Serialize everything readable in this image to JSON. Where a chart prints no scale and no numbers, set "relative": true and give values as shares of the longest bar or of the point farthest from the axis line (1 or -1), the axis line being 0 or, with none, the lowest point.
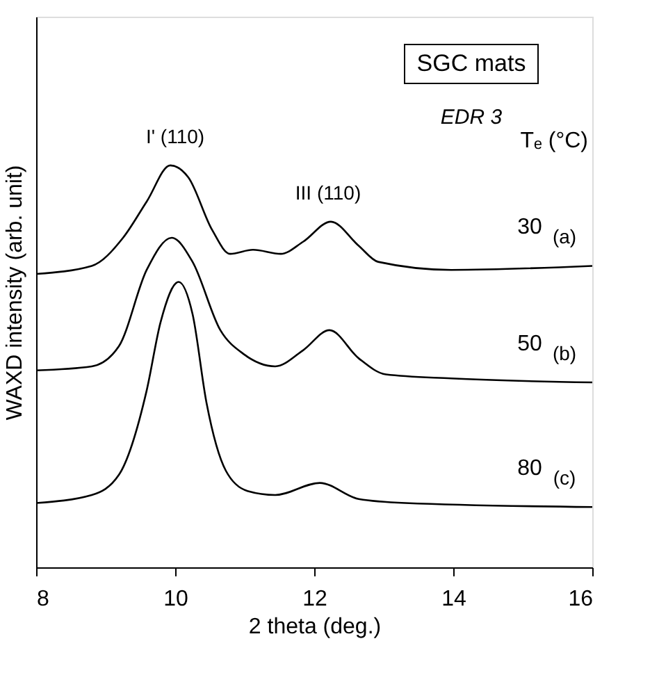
{
  "chart_data": {
    "type": "line",
    "relative": true,
    "xlabel": "2 theta (deg.)",
    "ylabel": "WAXD intensity (arb. unit)",
    "xlim": [
      8,
      16
    ],
    "xticks": [
      8,
      10,
      12,
      14,
      16
    ],
    "grid": false,
    "legend": false,
    "marker": "none",
    "line_style": "solid",
    "tick_labels": "x",
    "legend_title": "Tₑ (°C)",
    "annotations": [
      "SGC mats",
      "EDR 3",
      {
        "text": "I' (110)",
        "x": 10.0,
        "y": 1.0
      },
      {
        "text": "III (110)",
        "x": 12.2,
        "y": 0.86
      },
      {
        "text": "(a)",
        "x": 15.6,
        "y": 0.75
      },
      {
        "text": "(b)",
        "x": 15.6,
        "y": 0.46
      },
      {
        "text": "(c)",
        "x": 15.6,
        "y": 0.15
      }
    ],
    "series": [
      {
        "name": "30",
        "color": "#000000",
        "x": [
          8.0,
          8.8,
          9.25,
          9.59,
          9.93,
          10.19,
          10.53,
          10.79,
          11.12,
          11.52,
          11.84,
          12.24,
          12.64,
          12.92,
          13.97,
          16.0
        ],
        "values": [
          0.73,
          0.75,
          0.82,
          0.91,
          1.0,
          0.97,
          0.84,
          0.78,
          0.79,
          0.78,
          0.81,
          0.86,
          0.8,
          0.76,
          0.74,
          0.75
        ]
      },
      {
        "name": "50",
        "color": "#000000",
        "x": [
          8.0,
          8.8,
          9.19,
          9.59,
          9.95,
          10.25,
          10.65,
          10.99,
          11.44,
          11.84,
          12.22,
          12.64,
          13.03,
          13.97,
          16.0
        ],
        "values": [
          0.49,
          0.5,
          0.55,
          0.74,
          0.82,
          0.76,
          0.59,
          0.53,
          0.5,
          0.54,
          0.59,
          0.52,
          0.48,
          0.47,
          0.46
        ]
      },
      {
        "name": "80",
        "color": "#000000",
        "x": [
          8.0,
          8.8,
          9.19,
          9.59,
          9.79,
          10.05,
          10.25,
          10.45,
          10.73,
          11.04,
          11.44,
          12.08,
          12.64,
          13.31,
          16.0
        ],
        "values": [
          0.16,
          0.18,
          0.23,
          0.44,
          0.61,
          0.71,
          0.63,
          0.41,
          0.24,
          0.19,
          0.18,
          0.21,
          0.17,
          0.16,
          0.15
        ]
      }
    ]
  }
}
